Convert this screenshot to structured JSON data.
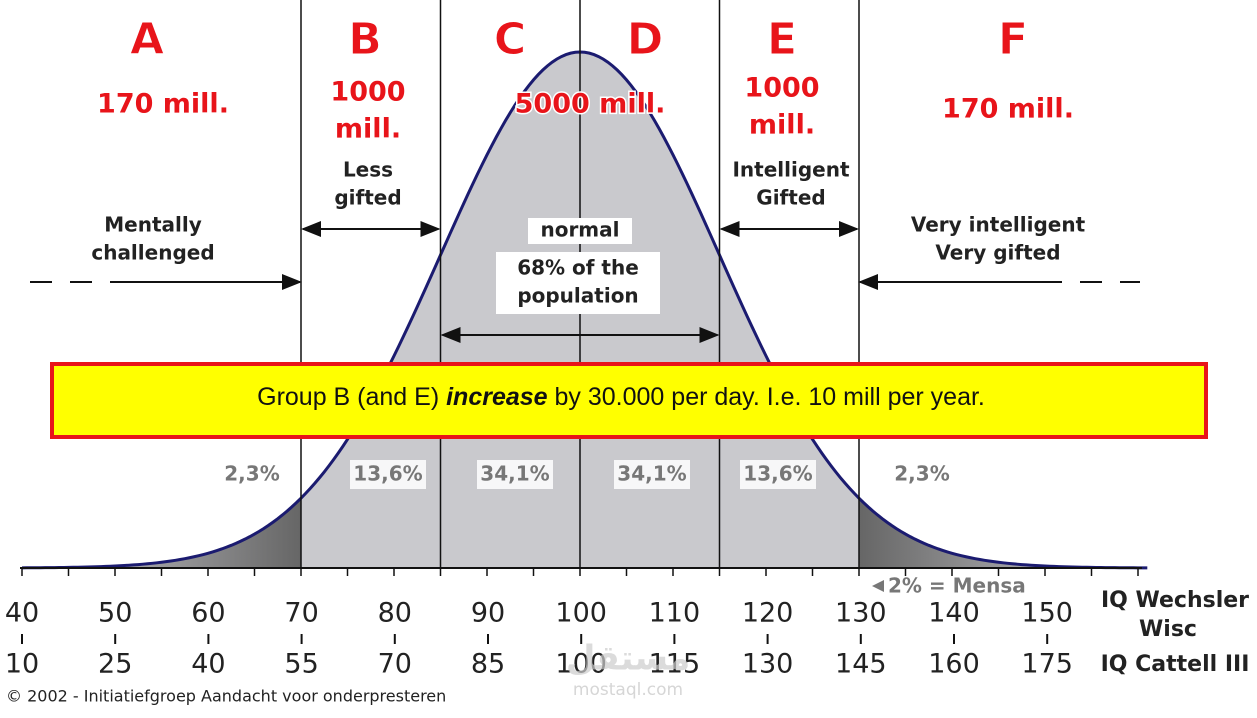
{
  "letters": [
    "A",
    "B",
    "C",
    "D",
    "E",
    "F"
  ],
  "counts": [
    [
      "170 mill."
    ],
    [
      "1000",
      "mill."
    ],
    [
      "5000 mill."
    ],
    [
      "1000",
      "mill."
    ],
    [
      "170 mill."
    ]
  ],
  "descriptions": [
    [
      "Mentally",
      "challenged"
    ],
    [
      "Less",
      "gifted"
    ],
    [
      "normal"
    ],
    [
      "68% of the",
      "population"
    ],
    [
      "Intelligent",
      "Gifted"
    ],
    [
      "Very intelligent",
      "Very gifted"
    ]
  ],
  "percentages": [
    "2,3%",
    "13,6%",
    "34,1%",
    "34,1%",
    "13,6%",
    "2,3%"
  ],
  "banner": {
    "before": "Group B (and E) ",
    "emphasis": "increase",
    "after": " by 30.000 per day. I.e. 10 mill per year."
  },
  "mensa": "2% = Mensa",
  "scale_wechsler": {
    "label": [
      "IQ Wechsler",
      "Wisc"
    ],
    "ticks": [
      40,
      50,
      60,
      70,
      80,
      90,
      100,
      110,
      120,
      130,
      140,
      150
    ]
  },
  "scale_cattell": {
    "label": "IQ Cattell III",
    "ticks": [
      10,
      25,
      40,
      55,
      70,
      85,
      100,
      115,
      130,
      145,
      160,
      175
    ]
  },
  "watermark": [
    "مستقل",
    "mostaql.com"
  ],
  "copyright": "© 2002 - Initiatiefgroep  Aandacht voor onderpresteren"
}
